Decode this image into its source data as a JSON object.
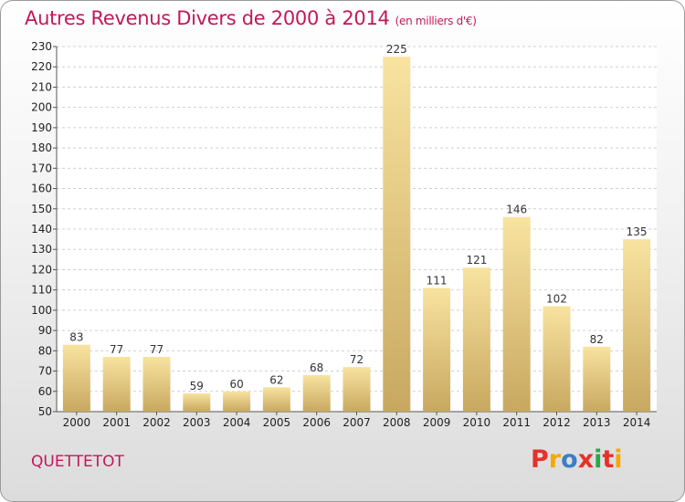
{
  "header": {
    "title": "Autres Revenus Divers de 2000 à 2014",
    "unit": "(en milliers d'€)"
  },
  "footer": {
    "location": "QUETTETOT",
    "brand": "Proxiti",
    "brand_colors": [
      "#e8302a",
      "#f5a800",
      "#3b7fc4",
      "#e8302a",
      "#2aa84a",
      "#e8302a",
      "#f5a800"
    ]
  },
  "chart_data": {
    "type": "bar",
    "categories": [
      "2000",
      "2001",
      "2002",
      "2003",
      "2004",
      "2005",
      "2006",
      "2007",
      "2008",
      "2009",
      "2010",
      "2011",
      "2012",
      "2013",
      "2014"
    ],
    "values": [
      83,
      77,
      77,
      59,
      60,
      62,
      68,
      72,
      225,
      111,
      121,
      146,
      102,
      82,
      135
    ],
    "ylim": [
      50,
      230
    ],
    "yticks": [
      50,
      60,
      70,
      80,
      90,
      100,
      110,
      120,
      130,
      140,
      150,
      160,
      170,
      180,
      190,
      200,
      210,
      220,
      230
    ],
    "grid": true,
    "legend": "none",
    "bar_color_light": "#f8e3a0",
    "bar_color_dark": "#c8a860"
  }
}
